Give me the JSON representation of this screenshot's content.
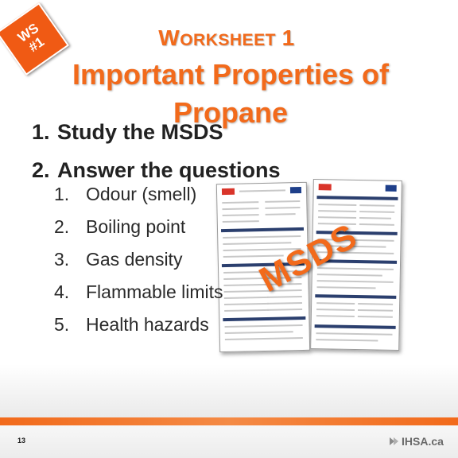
{
  "badge": {
    "line1": "WS",
    "line2": "#1"
  },
  "title": {
    "worksheet_w": "W",
    "worksheet_rest": "ORKSHEET",
    "worksheet_num": "1",
    "main": "Important Properties of Propane"
  },
  "steps": [
    {
      "num": "1.",
      "text": "Study the MSDS"
    },
    {
      "num": "2.",
      "text": "Answer the questions"
    }
  ],
  "questions": [
    {
      "num": "1.",
      "text": "Odour (smell)"
    },
    {
      "num": "2.",
      "text": "Boiling point"
    },
    {
      "num": "3.",
      "text": "Gas density"
    },
    {
      "num": "4.",
      "text": "Flammable limits"
    },
    {
      "num": "5.",
      "text": "Health hazards"
    }
  ],
  "msds_label": "MSDS",
  "footer": {
    "page_number": "13",
    "logo_text": "IHSA.ca"
  },
  "colors": {
    "accent": "#f26a1b",
    "badge": "#f05a14"
  }
}
